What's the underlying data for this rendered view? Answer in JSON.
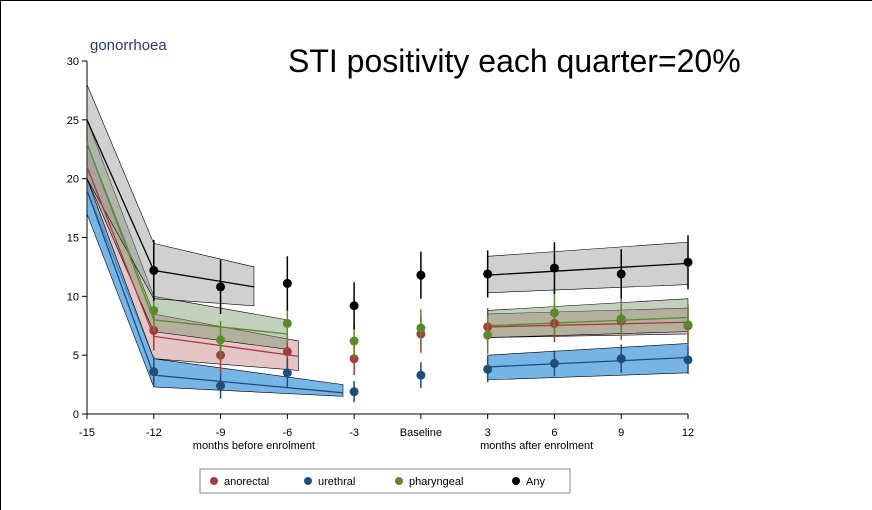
{
  "chart_data": {
    "type": "line",
    "title": "STI positivity each quarter=20%",
    "panel_label": "gonorrhoea",
    "xlabel_before": "months before enrolment",
    "xlabel_after": "months after enrolment",
    "x": [
      -12,
      -9,
      -6,
      -3,
      0,
      3,
      6,
      9,
      12
    ],
    "xlim": [
      -15,
      12
    ],
    "xticks": [
      -15,
      -12,
      -9,
      -6,
      -3,
      {
        "value": 0,
        "label": "Baseline"
      },
      3,
      6,
      9,
      12
    ],
    "ylim": [
      0,
      30
    ],
    "yticks": [
      0,
      5,
      10,
      15,
      20,
      25,
      30
    ],
    "legend": "bottom",
    "series": [
      {
        "name": "anorectal",
        "color": "#a83a3e",
        "band_color": "rgba(190,110,110,0.4)",
        "values": [
          7.1,
          5.0,
          5.3,
          4.7,
          6.8,
          7.4,
          7.7,
          7.9,
          7.5
        ],
        "errors": [
          1.7,
          1.5,
          1.5,
          1.4,
          1.6,
          1.6,
          1.6,
          1.6,
          1.6
        ],
        "fits": [
          {
            "x": [
              -15,
              -12,
              -5.5
            ],
            "values": [
              21,
              6.6,
              4.9
            ],
            "lower": [
              19,
              4.7,
              3.7
            ],
            "upper": [
              23,
              8.5,
              6.2
            ]
          },
          {
            "x": [
              3,
              12
            ],
            "values": [
              7.4,
              7.8
            ],
            "lower": [
              6.5,
              6.8
            ],
            "upper": [
              8.5,
              9.0
            ]
          }
        ]
      },
      {
        "name": "urethral",
        "color": "#1f4e79",
        "band_color": "rgba(60,150,220,0.7)",
        "values": [
          3.6,
          2.4,
          3.5,
          1.9,
          3.3,
          3.8,
          4.3,
          4.7,
          4.6
        ],
        "errors": [
          1.3,
          1.1,
          1.2,
          0.9,
          1.1,
          1.1,
          1.1,
          1.2,
          1.2
        ],
        "fits": [
          {
            "x": [
              -15,
              -12,
              -3.5
            ],
            "values": [
              19,
              3.3,
              1.8
            ],
            "lower": [
              17,
              2.3,
              1.5
            ],
            "upper": [
              20,
              4.7,
              2.5
            ]
          },
          {
            "x": [
              3,
              12
            ],
            "values": [
              4.0,
              4.8
            ],
            "lower": [
              2.9,
              3.5
            ],
            "upper": [
              5.0,
              6.0
            ]
          }
        ]
      },
      {
        "name": "pharyngeal",
        "color": "#5a8a2a",
        "band_color": "rgba(120,150,110,0.45)",
        "values": [
          8.8,
          6.3,
          7.7,
          6.2,
          7.3,
          6.7,
          8.6,
          8.1,
          7.6
        ],
        "errors": [
          1.8,
          1.6,
          1.7,
          1.5,
          1.6,
          1.6,
          1.8,
          1.7,
          1.7
        ],
        "fits": [
          {
            "x": [
              -15,
              -12,
              -6
            ],
            "values": [
              23,
              8.0,
              6.8
            ],
            "lower": [
              20,
              7.0,
              5.5
            ],
            "upper": [
              25,
              10,
              8.0
            ]
          },
          {
            "x": [
              3,
              12
            ],
            "values": [
              7.5,
              8.2
            ],
            "lower": [
              6.5,
              7.0
            ],
            "upper": [
              8.8,
              9.8
            ]
          }
        ]
      },
      {
        "name": "Any",
        "color": "#000000",
        "band_color": "rgba(150,150,150,0.45)",
        "values": [
          12.2,
          10.8,
          11.1,
          9.2,
          11.8,
          11.9,
          12.4,
          11.9,
          12.9
        ],
        "errors": [
          2.6,
          2.3,
          2.3,
          2.0,
          2.0,
          2.0,
          2.2,
          2.1,
          2.3
        ],
        "fits": [
          {
            "x": [
              -15,
              -12,
              -7.5
            ],
            "values": [
              25,
              12.2,
              10.8
            ],
            "lower": [
              20,
              9.8,
              9.2
            ],
            "upper": [
              28,
              14.5,
              12.5
            ]
          },
          {
            "x": [
              3,
              12
            ],
            "values": [
              11.8,
              12.8
            ],
            "lower": [
              10.3,
              11
            ],
            "upper": [
              13.4,
              14.6
            ]
          }
        ]
      }
    ]
  }
}
